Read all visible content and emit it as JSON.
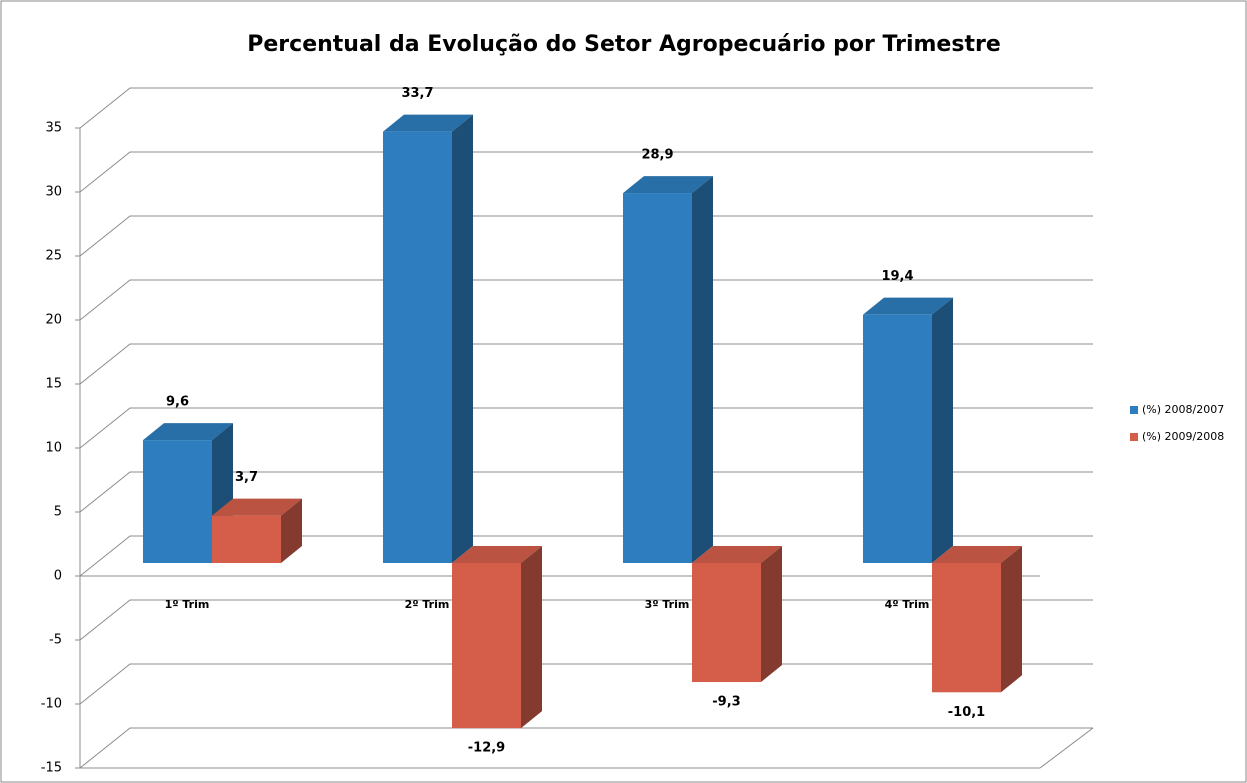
{
  "chart_data": {
    "type": "bar3d",
    "title": "Percentual da Evolução do Setor Agropecuário por Trimestre",
    "categories": [
      "1º Trim",
      "2º Trim",
      "3º Trim",
      "4º Trim"
    ],
    "series": [
      {
        "name": "(%) 2008/2007",
        "color": "#2e7ebf",
        "values": [
          9.6,
          33.7,
          28.9,
          19.4
        ],
        "value_labels": [
          "9,6",
          "33,7",
          "28,9",
          "19,4"
        ]
      },
      {
        "name": "(%) 2009/2008",
        "color": "#d55e4b",
        "values": [
          3.7,
          -12.9,
          -9.3,
          -10.1
        ],
        "value_labels": [
          "3,7",
          "-12,9",
          "-9,3",
          "-10,1"
        ]
      }
    ],
    "ylim": [
      -15,
      35
    ],
    "yticks": [
      -15,
      -10,
      -5,
      0,
      5,
      10,
      15,
      20,
      25,
      30,
      35
    ],
    "grid": true,
    "legend": "right"
  }
}
